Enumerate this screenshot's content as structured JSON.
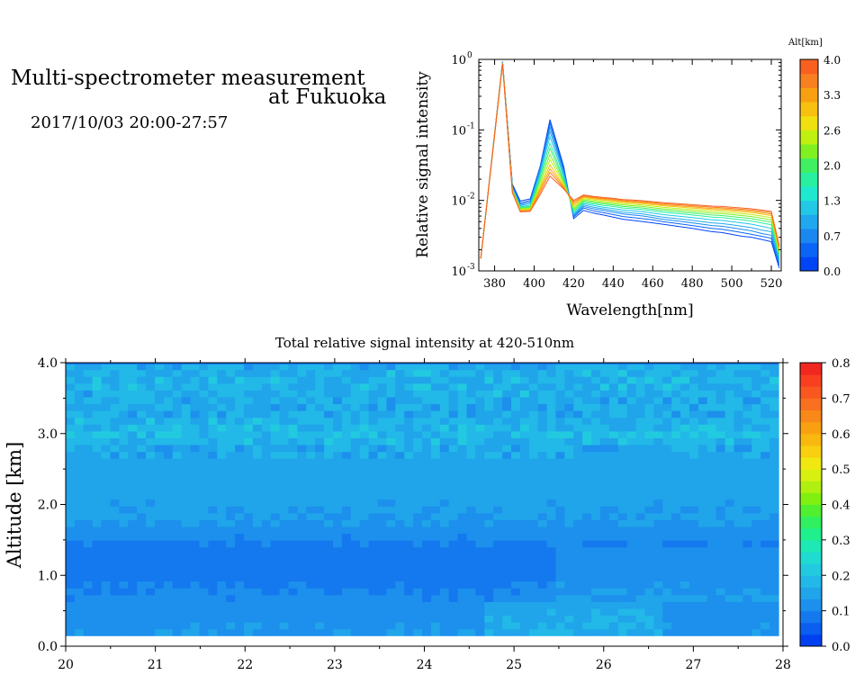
{
  "header": {
    "title_line1": "Multi-spectrometer measurement",
    "title_line2": "at Fukuoka",
    "datetime": "2017/10/03 20:00-27:57"
  },
  "chart_data": [
    {
      "type": "line",
      "xlabel": "Wavelength[nm]",
      "ylabel": "Relative signal intensity",
      "xlim": [
        372,
        525
      ],
      "ylim": [
        0.001,
        1
      ],
      "yscale": "log",
      "x_ticks": [
        380,
        400,
        420,
        440,
        460,
        480,
        500,
        520
      ],
      "y_ticks": [
        {
          "value": 0.001,
          "base": "10",
          "exp": "-3"
        },
        {
          "value": 0.01,
          "base": "10",
          "exp": "-2"
        },
        {
          "value": 0.1,
          "base": "10",
          "exp": "-1"
        },
        {
          "value": 1,
          "base": "10",
          "exp": "0"
        }
      ],
      "colorbar": {
        "label": "Alt[km]",
        "ticks": [
          "0.0",
          "0.7",
          "1.3",
          "2.0",
          "2.6",
          "3.3",
          "4.0"
        ],
        "colors": [
          "#0045f5",
          "#0a64f5",
          "#1a88f0",
          "#20a8ee",
          "#22c8e6",
          "#20e8d0",
          "#28f0a0",
          "#40f060",
          "#80f020",
          "#c0f010",
          "#f0e010",
          "#f8c010",
          "#f8a010",
          "#f88020",
          "#f86020"
        ]
      },
      "x": [
        373,
        384,
        389,
        393,
        398,
        403,
        408,
        415,
        420,
        425,
        430,
        435,
        440,
        445,
        450,
        455,
        460,
        465,
        470,
        475,
        480,
        485,
        490,
        495,
        500,
        505,
        510,
        515,
        520,
        524
      ],
      "series": [
        {
          "alt": 0.0,
          "values": [
            0.0015,
            0.93,
            0.017,
            0.0098,
            0.0105,
            0.03,
            0.14,
            0.03,
            0.0055,
            0.0072,
            0.0066,
            0.0062,
            0.0058,
            0.0054,
            0.0052,
            0.005,
            0.0048,
            0.0046,
            0.0044,
            0.0042,
            0.004,
            0.0038,
            0.0036,
            0.0035,
            0.0033,
            0.0031,
            0.003,
            0.0028,
            0.0026,
            0.0011
          ]
        },
        {
          "alt": 0.4,
          "values": [
            0.0015,
            0.92,
            0.016,
            0.0092,
            0.01,
            0.03,
            0.125,
            0.028,
            0.0058,
            0.0078,
            0.0071,
            0.0067,
            0.0063,
            0.0059,
            0.0057,
            0.0055,
            0.0053,
            0.005,
            0.0048,
            0.0046,
            0.0044,
            0.0042,
            0.004,
            0.0039,
            0.0037,
            0.0035,
            0.0033,
            0.0031,
            0.0029,
            0.0012
          ]
        },
        {
          "alt": 0.7,
          "values": [
            0.0015,
            0.91,
            0.0155,
            0.0088,
            0.0095,
            0.028,
            0.11,
            0.026,
            0.006,
            0.0082,
            0.0076,
            0.0072,
            0.0068,
            0.0064,
            0.0062,
            0.006,
            0.0057,
            0.0054,
            0.0052,
            0.005,
            0.0048,
            0.0046,
            0.0044,
            0.0043,
            0.0041,
            0.0039,
            0.0037,
            0.0034,
            0.0032,
            0.0013
          ]
        },
        {
          "alt": 1.0,
          "values": [
            0.0015,
            0.9,
            0.015,
            0.0085,
            0.009,
            0.026,
            0.095,
            0.024,
            0.0062,
            0.0086,
            0.008,
            0.0076,
            0.0072,
            0.0068,
            0.0066,
            0.0064,
            0.0061,
            0.0058,
            0.0056,
            0.0054,
            0.0052,
            0.005,
            0.0048,
            0.0047,
            0.0045,
            0.0043,
            0.0041,
            0.0038,
            0.0036,
            0.0014
          ]
        },
        {
          "alt": 1.3,
          "values": [
            0.0015,
            0.9,
            0.0148,
            0.0082,
            0.0085,
            0.024,
            0.08,
            0.022,
            0.0065,
            0.009,
            0.0085,
            0.008,
            0.0077,
            0.0073,
            0.0071,
            0.0069,
            0.0066,
            0.0063,
            0.0061,
            0.0059,
            0.0057,
            0.0055,
            0.0053,
            0.0052,
            0.005,
            0.0048,
            0.0046,
            0.0043,
            0.004,
            0.0015
          ]
        },
        {
          "alt": 1.7,
          "values": [
            0.0015,
            0.89,
            0.0145,
            0.008,
            0.0082,
            0.022,
            0.065,
            0.02,
            0.0068,
            0.0094,
            0.0089,
            0.0085,
            0.0082,
            0.0078,
            0.0076,
            0.0074,
            0.0071,
            0.0068,
            0.0066,
            0.0064,
            0.0062,
            0.006,
            0.0058,
            0.0057,
            0.0055,
            0.0053,
            0.0051,
            0.0048,
            0.0045,
            0.0016
          ]
        },
        {
          "alt": 2.0,
          "values": [
            0.0015,
            0.89,
            0.0143,
            0.0078,
            0.008,
            0.02,
            0.055,
            0.019,
            0.0072,
            0.0098,
            0.0093,
            0.0089,
            0.0086,
            0.0082,
            0.008,
            0.0078,
            0.0075,
            0.0072,
            0.007,
            0.0068,
            0.0066,
            0.0064,
            0.0062,
            0.0061,
            0.0059,
            0.0057,
            0.0055,
            0.0052,
            0.0049,
            0.0017
          ]
        },
        {
          "alt": 2.3,
          "values": [
            0.0015,
            0.88,
            0.014,
            0.0076,
            0.0078,
            0.018,
            0.045,
            0.018,
            0.0076,
            0.0102,
            0.0097,
            0.0093,
            0.009,
            0.0086,
            0.0084,
            0.0082,
            0.0079,
            0.0076,
            0.0074,
            0.0072,
            0.007,
            0.0068,
            0.0066,
            0.0065,
            0.0063,
            0.0061,
            0.0059,
            0.0056,
            0.0053,
            0.0018
          ]
        },
        {
          "alt": 2.6,
          "values": [
            0.0015,
            0.88,
            0.0138,
            0.0074,
            0.0076,
            0.016,
            0.038,
            0.017,
            0.008,
            0.0106,
            0.0101,
            0.0097,
            0.0094,
            0.009,
            0.0088,
            0.0086,
            0.0083,
            0.008,
            0.0078,
            0.0076,
            0.0074,
            0.0072,
            0.007,
            0.0069,
            0.0067,
            0.0065,
            0.0063,
            0.006,
            0.0057,
            0.0019
          ]
        },
        {
          "alt": 3.0,
          "values": [
            0.0015,
            0.87,
            0.0135,
            0.0072,
            0.0074,
            0.015,
            0.032,
            0.016,
            0.0085,
            0.011,
            0.0105,
            0.0101,
            0.0098,
            0.0094,
            0.0092,
            0.009,
            0.0087,
            0.0084,
            0.0082,
            0.008,
            0.0078,
            0.0076,
            0.0074,
            0.0073,
            0.0071,
            0.0069,
            0.0067,
            0.0064,
            0.0061,
            0.002
          ]
        },
        {
          "alt": 3.3,
          "values": [
            0.0015,
            0.87,
            0.0133,
            0.0071,
            0.0072,
            0.014,
            0.028,
            0.0155,
            0.009,
            0.0113,
            0.0108,
            0.0104,
            0.0101,
            0.0097,
            0.0095,
            0.0093,
            0.009,
            0.0087,
            0.0085,
            0.0083,
            0.0081,
            0.0079,
            0.0077,
            0.0076,
            0.0074,
            0.0072,
            0.007,
            0.0067,
            0.0064,
            0.0021
          ]
        },
        {
          "alt": 3.6,
          "values": [
            0.0015,
            0.86,
            0.013,
            0.007,
            0.0071,
            0.013,
            0.025,
            0.015,
            0.0095,
            0.0116,
            0.0111,
            0.0107,
            0.0104,
            0.01,
            0.0098,
            0.0096,
            0.0093,
            0.009,
            0.0088,
            0.0086,
            0.0084,
            0.0082,
            0.008,
            0.0079,
            0.0077,
            0.0075,
            0.0073,
            0.007,
            0.0067,
            0.0022
          ]
        },
        {
          "alt": 4.0,
          "values": [
            0.0015,
            0.86,
            0.0128,
            0.0069,
            0.007,
            0.012,
            0.022,
            0.0145,
            0.01,
            0.0119,
            0.0114,
            0.011,
            0.0107,
            0.0103,
            0.0101,
            0.0099,
            0.0096,
            0.0093,
            0.0091,
            0.0089,
            0.0087,
            0.0085,
            0.0083,
            0.0082,
            0.008,
            0.0078,
            0.0076,
            0.0073,
            0.007,
            0.0023
          ]
        }
      ]
    },
    {
      "type": "heatmap",
      "title": "Total relative signal intensity at 420-510nm",
      "ylabel": "Altitude [km]",
      "xlim": [
        20,
        28
      ],
      "ylim": [
        0,
        4
      ],
      "x_ticks": [
        "20",
        "21",
        "22",
        "23",
        "24",
        "25",
        "26",
        "27",
        "28"
      ],
      "y_ticks": [
        "0.0",
        "1.0",
        "2.0",
        "3.0",
        "4.0"
      ],
      "data_x_range": [
        20.0,
        27.95
      ],
      "data_y_range": [
        0.15,
        4.0
      ],
      "colorbar": {
        "range": [
          0,
          0.8
        ],
        "ticks": [
          "0.0",
          "0.1",
          "0.2",
          "0.3",
          "0.4",
          "0.5",
          "0.6",
          "0.7",
          "0.8"
        ],
        "colors": [
          "#0040f0",
          "#0a5ef0",
          "#1478ee",
          "#1c90ec",
          "#20a4ea",
          "#22b8e8",
          "#22cae0",
          "#20dcd0",
          "#1ee8b4",
          "#20f08c",
          "#30f060",
          "#50f030",
          "#80f010",
          "#b0f010",
          "#d8f010",
          "#f0e810",
          "#f8d010",
          "#f8b810",
          "#f8a010",
          "#f88818",
          "#f87020",
          "#f85820",
          "#f84020",
          "#f02820"
        ]
      },
      "altitude_profile": [
        {
          "alt": 0.2,
          "value": 0.13
        },
        {
          "alt": 0.5,
          "value": 0.12
        },
        {
          "alt": 0.8,
          "value": 0.1
        },
        {
          "alt": 1.1,
          "value": 0.08
        },
        {
          "alt": 1.4,
          "value": 0.09
        },
        {
          "alt": 1.7,
          "value": 0.13
        },
        {
          "alt": 2.0,
          "value": 0.14
        },
        {
          "alt": 2.4,
          "value": 0.15
        },
        {
          "alt": 2.8,
          "value": 0.15
        },
        {
          "alt": 3.0,
          "value": 0.19
        },
        {
          "alt": 3.3,
          "value": 0.15
        },
        {
          "alt": 3.7,
          "value": 0.17
        },
        {
          "alt": 3.95,
          "value": 0.16
        }
      ]
    }
  ]
}
